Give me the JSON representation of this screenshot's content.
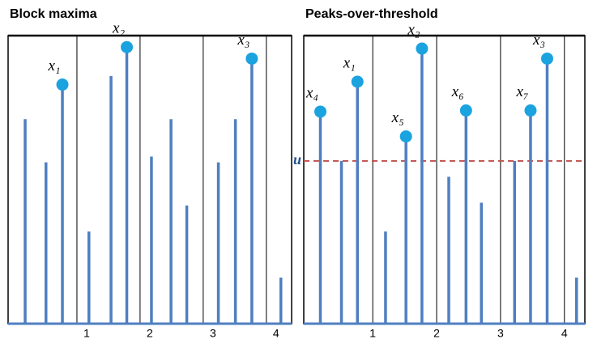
{
  "chart_data": [
    {
      "type": "stem",
      "title": "Block maxima",
      "xlim": [
        -0.09,
        4.4
      ],
      "ylim": [
        0,
        100
      ],
      "xticks": [
        1,
        2,
        3,
        4
      ],
      "grid": true,
      "color": "#4f7fc0",
      "point_color": "#1ba3e0",
      "x": [
        0.18,
        0.51,
        0.77,
        1.19,
        1.54,
        1.79,
        2.18,
        2.49,
        2.74,
        3.24,
        3.51,
        3.77,
        4.23
      ],
      "values": [
        71,
        56,
        83,
        32,
        86,
        96,
        58,
        71,
        41,
        56,
        71,
        92,
        16
      ],
      "points": {
        "x": [
          0.77,
          1.79,
          3.77
        ],
        "values": [
          83,
          96,
          92
        ],
        "labels": [
          "x₁",
          "x₂",
          "x₃"
        ]
      }
    },
    {
      "type": "stem",
      "title": "Peaks-over-threshold",
      "xlim": [
        -0.08,
        4.32
      ],
      "ylim": [
        0,
        100
      ],
      "xticks": [
        1,
        2,
        3,
        4
      ],
      "grid": true,
      "color": "#4f7fc0",
      "point_color": "#1ba3e0",
      "x": [
        0.18,
        0.51,
        0.76,
        1.2,
        1.52,
        1.77,
        2.19,
        2.46,
        2.7,
        3.22,
        3.47,
        3.73,
        4.19
      ],
      "values": [
        73.6,
        56.5,
        84,
        32,
        65,
        95.5,
        51,
        74,
        42,
        56.5,
        74,
        92,
        16
      ],
      "points": {
        "x": [
          0.18,
          0.76,
          1.52,
          1.77,
          2.46,
          3.47,
          3.73
        ],
        "values": [
          73.6,
          84,
          65,
          95.5,
          74,
          74,
          92
        ],
        "labels": [
          "x₄",
          "x₁",
          "x₅",
          "x₂",
          "x₆",
          "x₇",
          "x₃"
        ]
      },
      "threshold": {
        "value": 56.5,
        "label": "u",
        "color": "#c0504d"
      }
    }
  ]
}
